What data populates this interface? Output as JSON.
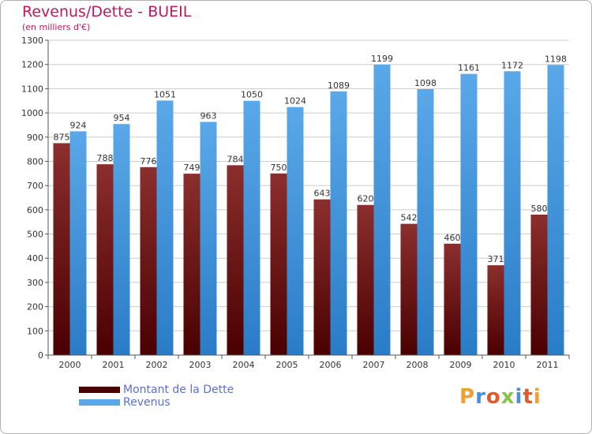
{
  "title": "Revenus/Dette - BUEIL",
  "subtitle": "(en milliers d'€)",
  "brand": "Proxiti",
  "colors": {
    "debt_top": "#8b2e2e",
    "debt_bottom": "#4a0000",
    "revenue_top": "#5aa8e8",
    "revenue_bottom": "#2a7cc7",
    "title": "#c2185b",
    "legend_text": "#5a6fd6",
    "grid": "#cccccc"
  },
  "legend": {
    "debt_label": "Montant de la Dette",
    "revenue_label": "Revenus"
  },
  "chart_data": {
    "type": "bar",
    "categories": [
      "2000",
      "2001",
      "2002",
      "2003",
      "2004",
      "2005",
      "2006",
      "2007",
      "2008",
      "2009",
      "2010",
      "2011"
    ],
    "series": [
      {
        "name": "Montant de la Dette",
        "values": [
          875,
          788,
          776,
          749,
          784,
          750,
          643,
          620,
          542,
          460,
          371,
          580
        ]
      },
      {
        "name": "Revenus",
        "values": [
          924,
          954,
          1051,
          963,
          1050,
          1024,
          1089,
          1199,
          1098,
          1161,
          1172,
          1198
        ]
      }
    ],
    "ylim": [
      0,
      1300
    ],
    "yticks": [
      0,
      100,
      200,
      300,
      400,
      500,
      600,
      700,
      800,
      900,
      1000,
      1100,
      1200,
      1300
    ],
    "grid": true,
    "legend_position": "bottom-left"
  }
}
